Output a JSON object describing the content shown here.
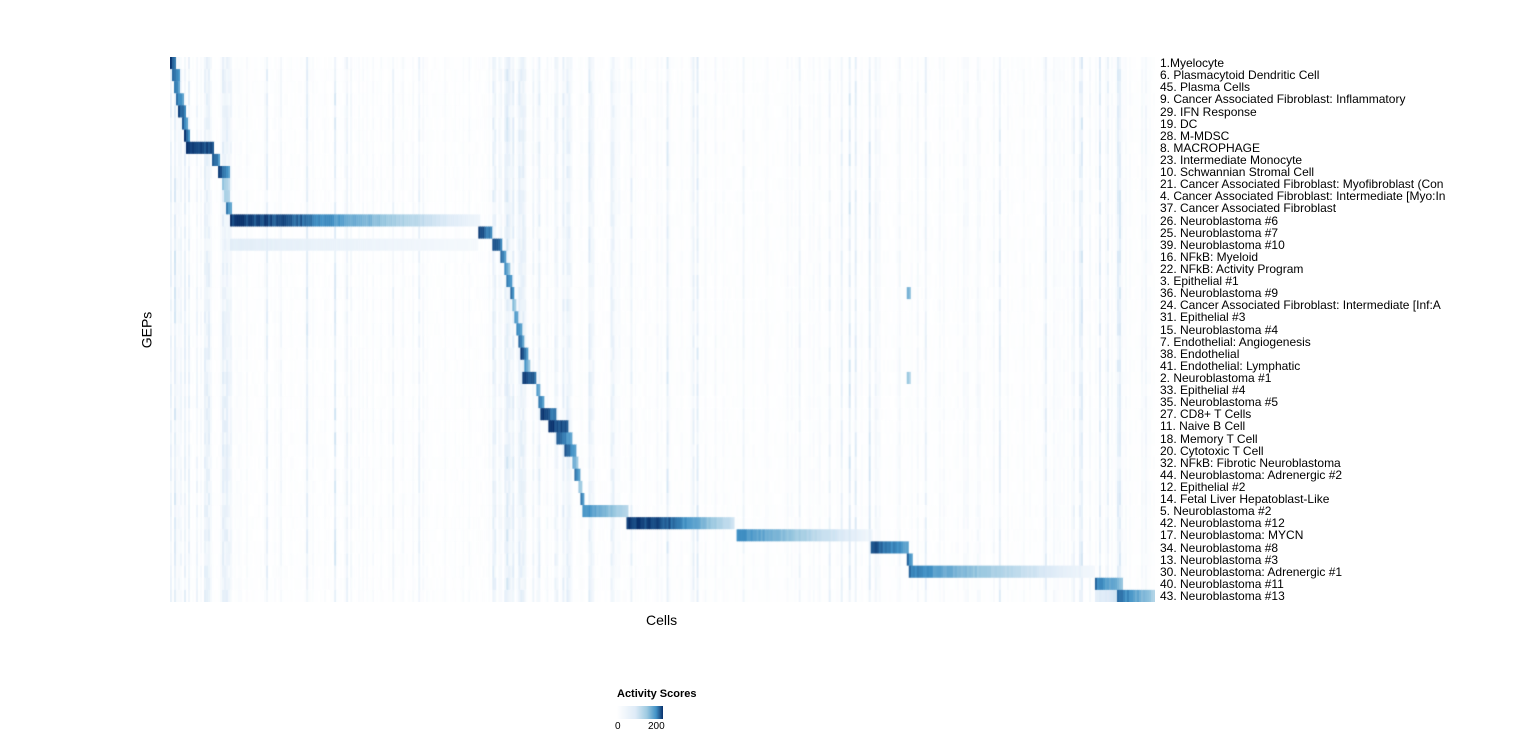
{
  "chart_data": {
    "type": "heatmap",
    "title": "",
    "xlabel": "Cells",
    "ylabel": "GEPs",
    "legend": {
      "title": "Activity Scores",
      "min_label": "0",
      "max_label": "200",
      "min": 0,
      "max": 200,
      "colormap": [
        "#ffffff",
        "#deebf7",
        "#9ecae1",
        "#4292c6",
        "#08306b"
      ]
    },
    "grid": false,
    "x_axis_ticks": [],
    "y_axis_ticks": [],
    "rows": [
      {
        "label": "1.Myelocyte",
        "segments": [
          [
            0.0,
            0.007,
            1.0,
            0.75
          ]
        ]
      },
      {
        "label": "6. Plasmacytoid Dendritic Cell",
        "segments": [
          [
            0.002,
            0.01,
            0.95,
            0.7
          ]
        ]
      },
      {
        "label": "45. Plasma Cells",
        "segments": [
          [
            0.005,
            0.011,
            0.85,
            0.6
          ]
        ]
      },
      {
        "label": "9. Cancer Associated Fibroblast: Inflammatory",
        "segments": [
          [
            0.007,
            0.014,
            0.9,
            0.65
          ]
        ]
      },
      {
        "label": "29. IFN Response",
        "segments": [
          [
            0.009,
            0.017,
            1.0,
            0.7
          ]
        ]
      },
      {
        "label": "19. DC",
        "segments": [
          [
            0.012,
            0.019,
            0.9,
            0.65
          ]
        ]
      },
      {
        "label": "28. M-MDSC",
        "segments": [
          [
            0.014,
            0.021,
            1.0,
            0.75
          ]
        ]
      },
      {
        "label": "8. MACROPHAGE",
        "segments": [
          [
            0.016,
            0.044,
            1.0,
            0.92
          ]
        ]
      },
      {
        "label": "23. Intermediate Monocyte",
        "segments": [
          [
            0.043,
            0.051,
            0.95,
            0.7
          ]
        ]
      },
      {
        "label": "10. Schwannian Stromal Cell",
        "segments": [
          [
            0.049,
            0.061,
            1.0,
            0.7
          ]
        ]
      },
      {
        "label": "21. Cancer Associated Fibroblast: Myofibroblast (Con",
        "segments": [
          [
            0.053,
            0.06,
            0.55,
            0.4
          ]
        ]
      },
      {
        "label": "4. Cancer Associated Fibroblast: Intermediate [Myo:In",
        "segments": [
          [
            0.055,
            0.061,
            0.5,
            0.4
          ]
        ]
      },
      {
        "label": "37. Cancer Associated Fibroblast",
        "segments": [
          [
            0.057,
            0.063,
            0.85,
            0.6
          ]
        ]
      },
      {
        "label": "26. Neuroblastoma #6",
        "segments": [
          [
            0.06,
            0.13,
            1.0,
            0.9
          ],
          [
            0.13,
            0.315,
            0.9,
            0.12
          ]
        ]
      },
      {
        "label": "25. Neuroblastoma #7",
        "segments": [
          [
            0.313,
            0.328,
            1.0,
            0.75
          ]
        ]
      },
      {
        "label": "39. Neuroblastoma #10",
        "segments": [
          [
            0.06,
            0.313,
            0.22,
            0.08
          ],
          [
            0.328,
            0.338,
            1.0,
            0.75
          ]
        ]
      },
      {
        "label": "16. NFkB: Myeloid",
        "segments": [
          [
            0.336,
            0.342,
            0.9,
            0.65
          ]
        ]
      },
      {
        "label": "22. NFkB: Activity Program",
        "segments": [
          [
            0.339,
            0.345,
            0.8,
            0.55
          ]
        ]
      },
      {
        "label": "3. Epithelial #1",
        "segments": [
          [
            0.342,
            0.348,
            0.9,
            0.65
          ]
        ]
      },
      {
        "label": "36. Neuroblastoma #9",
        "segments": [
          [
            0.345,
            0.35,
            0.9,
            0.65
          ],
          [
            0.748,
            0.753,
            0.7,
            0.5
          ]
        ]
      },
      {
        "label": "24. Cancer Associated Fibroblast: Intermediate [Inf:A",
        "segments": [
          [
            0.347,
            0.352,
            0.6,
            0.45
          ]
        ]
      },
      {
        "label": "31. Epithelial #3",
        "segments": [
          [
            0.349,
            0.354,
            0.8,
            0.6
          ]
        ]
      },
      {
        "label": "15. Neuroblastoma #4",
        "segments": [
          [
            0.351,
            0.357,
            0.9,
            0.65
          ]
        ]
      },
      {
        "label": "7. Endothelial: Angiogenesis",
        "segments": [
          [
            0.354,
            0.36,
            0.9,
            0.65
          ]
        ]
      },
      {
        "label": "38. Endothelial",
        "segments": [
          [
            0.356,
            0.363,
            1.0,
            0.75
          ]
        ]
      },
      {
        "label": "41. Endothelial: Lymphatic",
        "segments": [
          [
            0.36,
            0.365,
            0.8,
            0.55
          ]
        ]
      },
      {
        "label": "2. Neuroblastoma #1",
        "segments": [
          [
            0.358,
            0.372,
            1.0,
            0.85
          ],
          [
            0.748,
            0.752,
            0.6,
            0.4
          ]
        ]
      },
      {
        "label": "33. Epithelial #4",
        "segments": [
          [
            0.371,
            0.377,
            0.8,
            0.55
          ]
        ]
      },
      {
        "label": "35. Neuroblastoma #5",
        "segments": [
          [
            0.374,
            0.381,
            0.9,
            0.65
          ]
        ]
      },
      {
        "label": "27. CD8+ T Cells",
        "segments": [
          [
            0.377,
            0.392,
            1.0,
            0.8
          ]
        ]
      },
      {
        "label": "11. Naive B Cell",
        "segments": [
          [
            0.385,
            0.405,
            1.0,
            0.9
          ]
        ]
      },
      {
        "label": "18. Memory T Cell",
        "segments": [
          [
            0.392,
            0.408,
            0.9,
            0.7
          ]
        ]
      },
      {
        "label": "20. Cytotoxic T Cell",
        "segments": [
          [
            0.401,
            0.413,
            0.9,
            0.7
          ]
        ]
      },
      {
        "label": "32. NFkB: Fibrotic Neuroblastoma",
        "segments": [
          [
            0.408,
            0.415,
            0.7,
            0.5
          ]
        ]
      },
      {
        "label": "44. Neuroblastoma: Adrenergic #2",
        "segments": [
          [
            0.411,
            0.417,
            0.9,
            0.65
          ]
        ]
      },
      {
        "label": "12. Epithelial #2",
        "segments": [
          [
            0.414,
            0.419,
            0.6,
            0.45
          ]
        ]
      },
      {
        "label": "14. Fetal Liver Hepatoblast-Like",
        "segments": [
          [
            0.416,
            0.421,
            0.9,
            0.65
          ]
        ]
      },
      {
        "label": "5. Neuroblastoma #2",
        "segments": [
          [
            0.418,
            0.465,
            0.8,
            0.4
          ]
        ]
      },
      {
        "label": "42. Neuroblastoma #12",
        "segments": [
          [
            0.464,
            0.505,
            1.0,
            0.92
          ],
          [
            0.505,
            0.574,
            0.92,
            0.3
          ]
        ]
      },
      {
        "label": "17. Neuroblastoma: MYCN",
        "segments": [
          [
            0.576,
            0.625,
            0.8,
            0.55
          ],
          [
            0.625,
            0.713,
            0.55,
            0.1
          ]
        ]
      },
      {
        "label": "34. Neuroblastoma #8",
        "segments": [
          [
            0.711,
            0.749,
            0.95,
            0.7
          ]
        ]
      },
      {
        "label": "13. Neuroblastoma #3",
        "segments": [
          [
            0.748,
            0.755,
            0.9,
            0.65
          ]
        ]
      },
      {
        "label": "30. Neuroblastoma: Adrenergic #1",
        "segments": [
          [
            0.75,
            0.8,
            0.85,
            0.6
          ],
          [
            0.8,
            0.94,
            0.6,
            0.08
          ]
        ]
      },
      {
        "label": "40. Neuroblastoma #11",
        "segments": [
          [
            0.939,
            0.967,
            0.85,
            0.55
          ]
        ]
      },
      {
        "label": "43. Neuroblastoma #13",
        "segments": [
          [
            0.94,
            0.962,
            0.2,
            0.3
          ],
          [
            0.961,
            1.0,
            0.9,
            0.45
          ]
        ]
      }
    ]
  }
}
